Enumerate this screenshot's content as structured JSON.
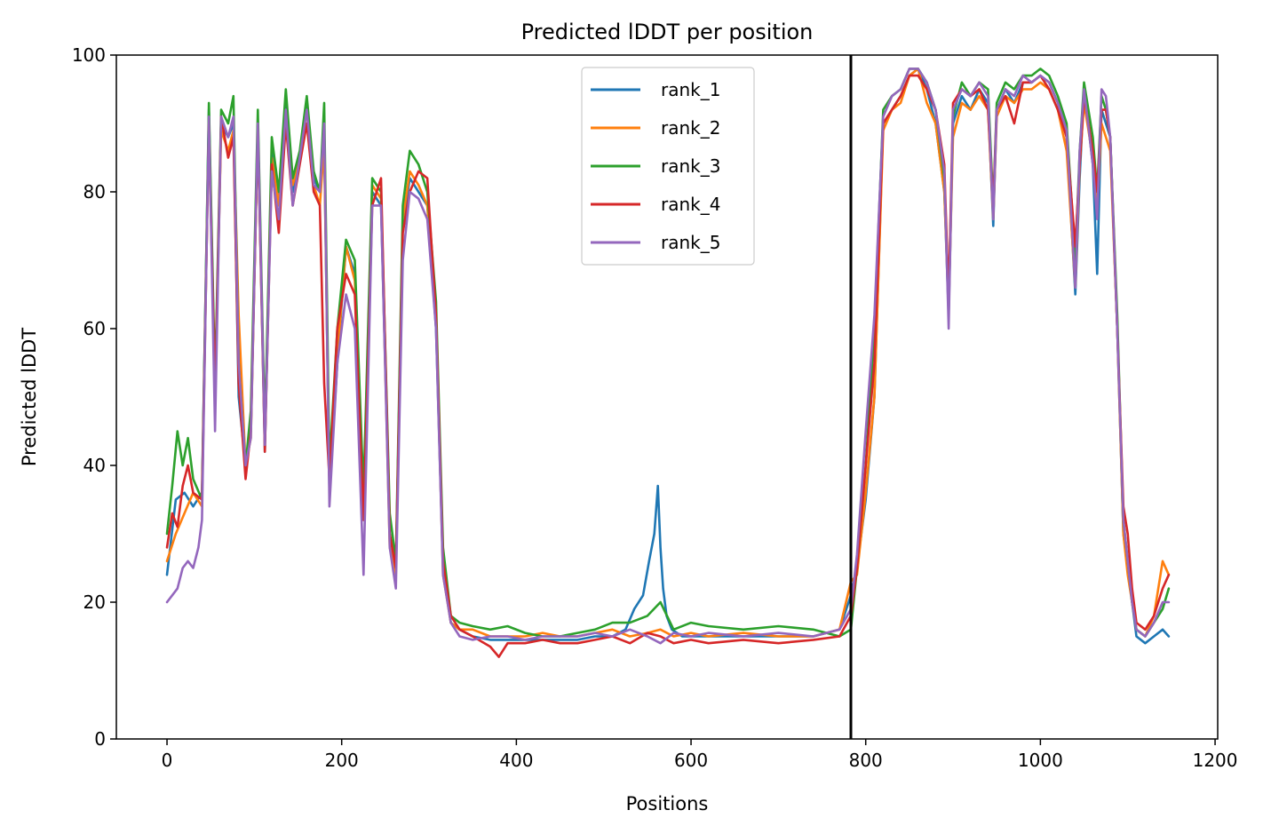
{
  "chart_data": {
    "type": "line",
    "title": "Predicted lDDT per position",
    "xlabel": "Positions",
    "ylabel": "Predicted lDDT",
    "xlim": [
      -58,
      1203
    ],
    "ylim": [
      0,
      100
    ],
    "xticks": [
      0,
      200,
      400,
      600,
      800,
      1000,
      1200
    ],
    "yticks": [
      0,
      20,
      40,
      60,
      80,
      100
    ],
    "grid": false,
    "legend_placement": "upper center",
    "vline_x": 783,
    "vline_color": "#000000",
    "series": [
      {
        "name": "rank_1",
        "color": "#1f77b4",
        "x": [
          0,
          10,
          20,
          30,
          40,
          48,
          55,
          62,
          70,
          76,
          82,
          90,
          96,
          104,
          112,
          120,
          128,
          136,
          144,
          152,
          160,
          168,
          175,
          180,
          186,
          195,
          205,
          215,
          225,
          235,
          245,
          255,
          262,
          270,
          278,
          288,
          298,
          308,
          316,
          325,
          335,
          350,
          370,
          390,
          410,
          430,
          450,
          470,
          490,
          510,
          525,
          535,
          545,
          552,
          558,
          562,
          565,
          568,
          572,
          578,
          590,
          620,
          660,
          700,
          740,
          770,
          783,
          790,
          800,
          810,
          820,
          830,
          840,
          850,
          860,
          870,
          880,
          890,
          895,
          900,
          910,
          920,
          930,
          940,
          946,
          950,
          960,
          970,
          980,
          990,
          1000,
          1010,
          1020,
          1030,
          1040,
          1045,
          1050,
          1060,
          1065,
          1070,
          1075,
          1080,
          1088,
          1095,
          1100,
          1105,
          1110,
          1120,
          1130,
          1140,
          1147
        ],
        "y": [
          24,
          35,
          36,
          34,
          36,
          92,
          50,
          90,
          88,
          90,
          50,
          40,
          45,
          90,
          42,
          86,
          78,
          93,
          80,
          85,
          93,
          82,
          80,
          87,
          36,
          55,
          72,
          68,
          35,
          80,
          78,
          30,
          25,
          75,
          82,
          80,
          78,
          60,
          25,
          17,
          16,
          15,
          14.5,
          14.5,
          14.5,
          14.5,
          14.5,
          14.5,
          15,
          15,
          16,
          19,
          21,
          26,
          30,
          37,
          28,
          22,
          18,
          16,
          15,
          15,
          15,
          15,
          15,
          16,
          21,
          25,
          35,
          50,
          90,
          92,
          94,
          97,
          98,
          95,
          90,
          80,
          62,
          90,
          94,
          92,
          95,
          93,
          75,
          92,
          95,
          93,
          96,
          96,
          97,
          96,
          93,
          88,
          65,
          82,
          95,
          84,
          68,
          92,
          90,
          88,
          60,
          30,
          25,
          20,
          15,
          14,
          15,
          16,
          15
        ]
      },
      {
        "name": "rank_2",
        "color": "#ff7f0e",
        "x": [
          0,
          10,
          20,
          30,
          40,
          48,
          55,
          62,
          70,
          76,
          82,
          90,
          96,
          104,
          112,
          120,
          128,
          136,
          144,
          152,
          160,
          168,
          175,
          180,
          186,
          195,
          205,
          215,
          225,
          235,
          245,
          255,
          262,
          270,
          278,
          288,
          298,
          308,
          316,
          325,
          335,
          350,
          370,
          390,
          410,
          430,
          450,
          470,
          490,
          510,
          530,
          550,
          565,
          580,
          600,
          620,
          660,
          700,
          740,
          770,
          783,
          790,
          800,
          810,
          820,
          830,
          840,
          850,
          860,
          870,
          880,
          890,
          895,
          900,
          910,
          920,
          930,
          940,
          946,
          950,
          960,
          970,
          980,
          990,
          1000,
          1010,
          1020,
          1030,
          1040,
          1045,
          1050,
          1060,
          1065,
          1070,
          1075,
          1080,
          1088,
          1095,
          1100,
          1105,
          1110,
          1120,
          1130,
          1140,
          1147
        ],
        "y": [
          26,
          30,
          33,
          36,
          34,
          90,
          50,
          89,
          86,
          89,
          62,
          40,
          44,
          89,
          44,
          85,
          78,
          92,
          81,
          85,
          92,
          81,
          78,
          87,
          37,
          56,
          72,
          67,
          33,
          81,
          79,
          28,
          24,
          76,
          83,
          81,
          78,
          62,
          24,
          17,
          16,
          16,
          15,
          15,
          15,
          15.5,
          15,
          15,
          15.5,
          16,
          15,
          15.5,
          16,
          15,
          15.5,
          15,
          15.5,
          15,
          15,
          16,
          23,
          24,
          36,
          50,
          89,
          92,
          93,
          97,
          98,
          93,
          90,
          80,
          63,
          88,
          93,
          92,
          94,
          92,
          76,
          91,
          94,
          93,
          95,
          95,
          96,
          95,
          92,
          86,
          66,
          84,
          93,
          85,
          78,
          90,
          88,
          86,
          60,
          30,
          24,
          20,
          16,
          15,
          18,
          26,
          24
        ]
      },
      {
        "name": "rank_3",
        "color": "#2ca02c",
        "x": [
          0,
          6,
          12,
          18,
          24,
          30,
          40,
          48,
          55,
          62,
          70,
          76,
          82,
          90,
          96,
          104,
          112,
          120,
          128,
          136,
          144,
          152,
          160,
          168,
          175,
          180,
          186,
          195,
          205,
          215,
          225,
          235,
          245,
          255,
          262,
          270,
          278,
          288,
          298,
          308,
          316,
          325,
          335,
          350,
          370,
          390,
          410,
          430,
          450,
          470,
          490,
          510,
          530,
          550,
          565,
          580,
          600,
          620,
          660,
          700,
          740,
          770,
          783,
          790,
          800,
          810,
          820,
          830,
          840,
          850,
          860,
          870,
          880,
          890,
          895,
          900,
          910,
          920,
          930,
          940,
          946,
          950,
          960,
          970,
          980,
          990,
          1000,
          1010,
          1020,
          1030,
          1040,
          1045,
          1050,
          1060,
          1065,
          1070,
          1075,
          1080,
          1088,
          1095,
          1100,
          1105,
          1110,
          1120,
          1130,
          1140,
          1147
        ],
        "y": [
          30,
          37,
          45,
          40,
          44,
          38,
          35,
          93,
          52,
          92,
          90,
          94,
          55,
          40,
          48,
          92,
          45,
          88,
          80,
          95,
          82,
          86,
          94,
          83,
          80,
          93,
          40,
          60,
          73,
          70,
          36,
          82,
          80,
          33,
          26,
          78,
          86,
          84,
          80,
          64,
          28,
          18,
          17,
          16.5,
          16,
          16.5,
          15.5,
          15,
          15,
          15.5,
          16,
          17,
          17,
          18,
          20,
          16,
          17,
          16.5,
          16,
          16.5,
          16,
          15,
          16,
          25,
          40,
          60,
          92,
          94,
          95,
          98,
          98,
          96,
          92,
          82,
          64,
          91,
          96,
          94,
          96,
          95,
          78,
          93,
          96,
          95,
          97,
          97,
          98,
          97,
          94,
          90,
          70,
          86,
          96,
          88,
          80,
          94,
          92,
          88,
          62,
          32,
          26,
          20,
          16,
          15,
          17,
          19,
          22
        ]
      },
      {
        "name": "rank_4",
        "color": "#d62728",
        "x": [
          0,
          6,
          12,
          18,
          24,
          30,
          40,
          48,
          55,
          62,
          70,
          76,
          82,
          90,
          96,
          104,
          112,
          120,
          128,
          136,
          144,
          152,
          160,
          168,
          175,
          180,
          186,
          195,
          205,
          215,
          225,
          235,
          245,
          255,
          262,
          270,
          278,
          288,
          298,
          308,
          316,
          325,
          335,
          350,
          370,
          380,
          390,
          410,
          430,
          450,
          470,
          490,
          510,
          530,
          550,
          565,
          580,
          600,
          620,
          660,
          700,
          740,
          770,
          783,
          790,
          800,
          810,
          820,
          830,
          840,
          850,
          860,
          870,
          880,
          890,
          895,
          900,
          910,
          920,
          930,
          940,
          946,
          950,
          960,
          970,
          980,
          990,
          1000,
          1010,
          1020,
          1030,
          1040,
          1045,
          1050,
          1060,
          1065,
          1070,
          1075,
          1080,
          1088,
          1095,
          1100,
          1105,
          1110,
          1120,
          1130,
          1140,
          1147
        ],
        "y": [
          28,
          33,
          31,
          37,
          40,
          36,
          35,
          90,
          50,
          91,
          85,
          88,
          52,
          38,
          45,
          89,
          42,
          84,
          74,
          90,
          78,
          84,
          90,
          80,
          78,
          52,
          38,
          60,
          68,
          65,
          32,
          78,
          82,
          30,
          25,
          74,
          80,
          83,
          82,
          62,
          26,
          18,
          16,
          15,
          13.5,
          12,
          14,
          14,
          14.5,
          14,
          14,
          14.5,
          15,
          14,
          15.5,
          15,
          14,
          14.5,
          14,
          14.5,
          14,
          14.5,
          15,
          18,
          25,
          40,
          55,
          90,
          92,
          94,
          97,
          97,
          95,
          92,
          84,
          64,
          93,
          95,
          94,
          95,
          92,
          78,
          92,
          94,
          90,
          96,
          96,
          97,
          95,
          92,
          88,
          72,
          84,
          94,
          86,
          80,
          92,
          92,
          88,
          60,
          34,
          30,
          22,
          17,
          16,
          18,
          22,
          24
        ]
      },
      {
        "name": "rank_5",
        "color": "#9467bd",
        "x": [
          0,
          6,
          12,
          18,
          24,
          30,
          36,
          40,
          48,
          55,
          62,
          70,
          76,
          82,
          90,
          96,
          104,
          112,
          120,
          128,
          136,
          144,
          152,
          160,
          168,
          175,
          180,
          186,
          195,
          205,
          215,
          225,
          235,
          245,
          255,
          262,
          270,
          278,
          288,
          298,
          308,
          316,
          325,
          335,
          350,
          370,
          390,
          410,
          430,
          450,
          470,
          490,
          510,
          530,
          550,
          565,
          580,
          600,
          620,
          660,
          700,
          740,
          770,
          783,
          790,
          800,
          810,
          820,
          830,
          840,
          850,
          860,
          870,
          880,
          890,
          895,
          900,
          910,
          920,
          930,
          940,
          946,
          950,
          960,
          970,
          980,
          990,
          1000,
          1010,
          1020,
          1030,
          1040,
          1045,
          1050,
          1060,
          1065,
          1070,
          1075,
          1080,
          1088,
          1095,
          1100,
          1105,
          1110,
          1120,
          1130,
          1140,
          1147
        ],
        "y": [
          20,
          21,
          22,
          25,
          26,
          25,
          28,
          32,
          91,
          45,
          91,
          88,
          91,
          55,
          40,
          44,
          90,
          43,
          83,
          76,
          92,
          78,
          85,
          92,
          81,
          80,
          90,
          34,
          55,
          65,
          60,
          24,
          78,
          78,
          28,
          22,
          70,
          80,
          79,
          76,
          60,
          24,
          17,
          15,
          14.5,
          15,
          15,
          14.5,
          15,
          15,
          15,
          15.5,
          15,
          16,
          15,
          14,
          15.5,
          15,
          15.5,
          15,
          15.5,
          15,
          16,
          19,
          27,
          45,
          62,
          91,
          94,
          95,
          98,
          98,
          96,
          92,
          83,
          60,
          92,
          95,
          94,
          96,
          94,
          76,
          92,
          95,
          94,
          97,
          96,
          97,
          96,
          93,
          89,
          66,
          86,
          95,
          84,
          76,
          95,
          94,
          88,
          60,
          32,
          26,
          20,
          16,
          15,
          17,
          20,
          20
        ]
      }
    ]
  }
}
